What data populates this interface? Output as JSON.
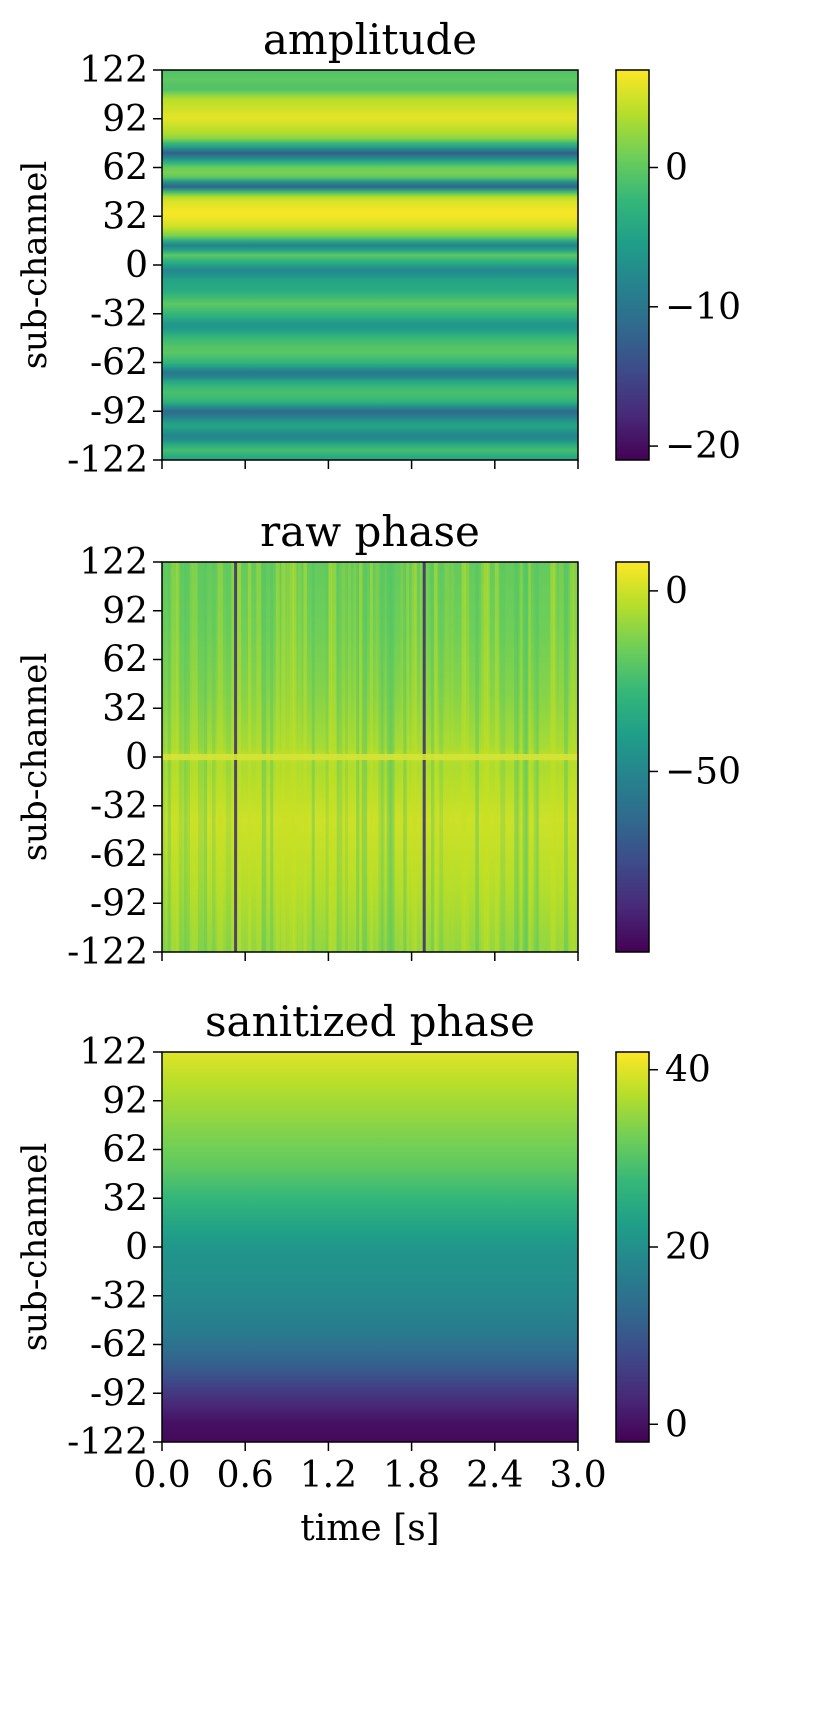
{
  "chart_data": [
    {
      "type": "heatmap",
      "title": "amplitude",
      "xlabel": "",
      "ylabel": "sub-channel",
      "x_ticks": [
        "",
        "",
        "",
        "",
        "",
        ""
      ],
      "y_ticks": [
        "122",
        "92",
        "62",
        "32",
        "0",
        "-32",
        "-62",
        "-92",
        "-122"
      ],
      "colorbar": {
        "range": [
          -21,
          7
        ],
        "ticks": [
          0,
          -10,
          -20
        ],
        "tick_labels": [
          "0",
          "−10",
          "−20"
        ]
      },
      "row_profile": {
        "subchannel": [
          -122,
          -115,
          -108,
          -100,
          -92,
          -86,
          -80,
          -74,
          -68,
          -62,
          -54,
          -46,
          -38,
          -32,
          -24,
          -16,
          -8,
          -4,
          0,
          6,
          12,
          18,
          24,
          32,
          42,
          48,
          50,
          52,
          56,
          62,
          66,
          70,
          74,
          80,
          92,
          104,
          110,
          116,
          122
        ],
        "value": [
          -5,
          -1,
          -9,
          -4,
          -12,
          -3,
          -1,
          -3,
          -11,
          -3,
          0,
          -2,
          -7,
          -3,
          0,
          -4,
          -5,
          -9,
          -5,
          0,
          -9,
          1,
          5,
          7,
          5,
          -6,
          -21,
          -6,
          2,
          0,
          -6,
          -13,
          -5,
          3,
          6,
          4,
          -1,
          0,
          -1
        ]
      }
    },
    {
      "type": "heatmap",
      "title": "raw phase",
      "xlabel": "",
      "ylabel": "sub-channel",
      "x_ticks": [
        "",
        "",
        "",
        "",
        "",
        ""
      ],
      "y_ticks": [
        "122",
        "92",
        "62",
        "32",
        "0",
        "-32",
        "-62",
        "-92",
        "-122"
      ],
      "colorbar": {
        "range": [
          -100,
          8
        ],
        "ticks": [
          0,
          -50
        ],
        "tick_labels": [
          "0",
          "−50"
        ]
      },
      "row_profile": {
        "subchannel": [
          -122,
          -80,
          -40,
          -4,
          0,
          4,
          40,
          80,
          122
        ],
        "value": [
          -10,
          -4,
          0,
          -6,
          0,
          -6,
          -12,
          -16,
          -18
        ]
      },
      "dark_columns_time_s": [
        0.52,
        1.88
      ]
    },
    {
      "type": "heatmap",
      "title": "sanitized phase",
      "xlabel": "time [s]",
      "ylabel": "sub-channel",
      "x_range": [
        0.0,
        3.0
      ],
      "x_ticks": [
        "0.0",
        "0.6",
        "1.2",
        "1.8",
        "2.4",
        "3.0"
      ],
      "y_ticks": [
        "122",
        "92",
        "62",
        "32",
        "0",
        "-32",
        "-62",
        "-92",
        "-122"
      ],
      "colorbar": {
        "range": [
          -2,
          42
        ],
        "ticks": [
          40,
          20,
          0
        ],
        "tick_labels": [
          "40",
          "20",
          "0"
        ]
      },
      "row_profile": {
        "subchannel": [
          -122,
          -110,
          -95,
          -75,
          -55,
          -30,
          0,
          30,
          50,
          75,
          100,
          122
        ],
        "value": [
          -1,
          0,
          4,
          11,
          16,
          19,
          21,
          27,
          31,
          34,
          37,
          40
        ]
      }
    }
  ]
}
